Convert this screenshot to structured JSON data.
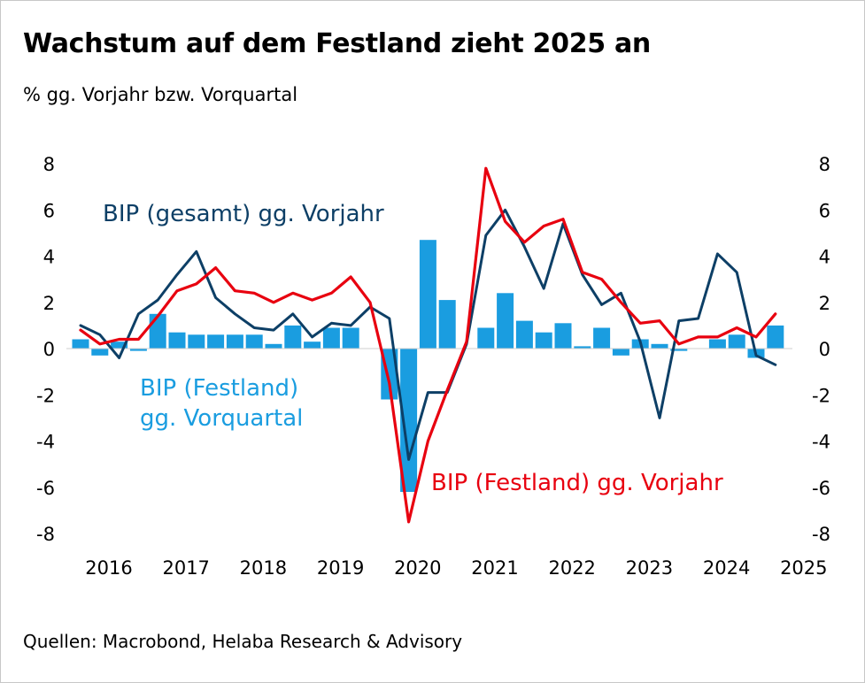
{
  "header": {
    "title": "Wachstum auf dem Festland zieht 2025 an",
    "subtitle": "% gg. Vorjahr bzw. Vorquartal"
  },
  "footer": {
    "source": "Quellen: Macrobond, Helaba Research & Advisory"
  },
  "colors": {
    "bars": "#1a9de0",
    "gesamt": "#0d3f66",
    "festland": "#e8000f",
    "axis_text": "#000000"
  },
  "chart_data": {
    "type": "bar+line",
    "title": "Wachstum auf dem Festland zieht 2025 an",
    "subtitle": "% gg. Vorjahr bzw. Vorquartal",
    "ylim": [
      -8,
      8
    ],
    "y_ticks": [
      8,
      6,
      4,
      2,
      0,
      -2,
      -4,
      -6,
      -8
    ],
    "y_tick_labels": [
      "8",
      "6",
      "4",
      "2",
      "0",
      "-2",
      "-4",
      "-6",
      "-8"
    ],
    "x_tick_labels": [
      "2016",
      "2017",
      "2018",
      "2019",
      "2020",
      "2021",
      "2022",
      "2023",
      "2024",
      "2025"
    ],
    "legend_placement": "inline annotations",
    "quarters": [
      "2015Q4",
      "2016Q1",
      "2016Q2",
      "2016Q3",
      "2016Q4",
      "2017Q1",
      "2017Q2",
      "2017Q3",
      "2017Q4",
      "2018Q1",
      "2018Q2",
      "2018Q3",
      "2018Q4",
      "2019Q1",
      "2019Q2",
      "2019Q3",
      "2019Q4",
      "2020Q1",
      "2020Q2",
      "2020Q3",
      "2020Q4",
      "2021Q1",
      "2021Q2",
      "2021Q3",
      "2021Q4",
      "2022Q1",
      "2022Q2",
      "2022Q3",
      "2022Q4",
      "2023Q1",
      "2023Q2",
      "2023Q3",
      "2023Q4",
      "2024Q1",
      "2024Q2",
      "2024Q3",
      "2024Q4"
    ],
    "series": [
      {
        "name": "BIP (Festland) gg. Vorquartal",
        "label_lines": [
          "BIP (Festland)",
          "gg. Vorquartal"
        ],
        "kind": "bar",
        "color": "#1a9de0",
        "values": [
          0.4,
          -0.3,
          0.3,
          -0.1,
          1.5,
          0.7,
          0.6,
          0.6,
          0.6,
          0.6,
          0.2,
          1.0,
          0.3,
          0.9,
          0.9,
          0.0,
          -2.2,
          -6.2,
          4.7,
          2.1,
          0.0,
          0.9,
          2.4,
          1.2,
          0.7,
          1.1,
          0.1,
          0.9,
          -0.3,
          0.4,
          0.2,
          -0.1,
          0.0,
          0.4,
          0.6,
          -0.4,
          1.0
        ]
      },
      {
        "name": "BIP (gesamt) gg. Vorjahr",
        "kind": "line",
        "color": "#0d3f66",
        "values": [
          1.0,
          0.6,
          -0.4,
          1.5,
          2.1,
          3.2,
          4.2,
          2.2,
          1.5,
          0.9,
          0.8,
          1.5,
          0.5,
          1.1,
          1.0,
          1.8,
          1.3,
          -4.8,
          -1.9,
          -1.9,
          0.2,
          4.9,
          6.0,
          4.4,
          2.6,
          5.4,
          3.2,
          1.9,
          2.4,
          0.3,
          -3.0,
          1.2,
          1.3,
          4.1,
          3.3,
          -0.3,
          -0.7
        ]
      },
      {
        "name": "BIP (Festland) gg. Vorjahr",
        "kind": "line",
        "color": "#e8000f",
        "values": [
          0.8,
          0.2,
          0.4,
          0.4,
          1.4,
          2.5,
          2.8,
          3.5,
          2.5,
          2.4,
          2.0,
          2.4,
          2.1,
          2.4,
          3.1,
          2.0,
          -1.5,
          -7.5,
          -4.0,
          -1.8,
          0.3,
          7.8,
          5.5,
          4.6,
          5.3,
          5.6,
          3.3,
          3.0,
          2.0,
          1.1,
          1.2,
          0.2,
          0.5,
          0.5,
          0.9,
          0.5,
          1.5
        ]
      }
    ]
  }
}
